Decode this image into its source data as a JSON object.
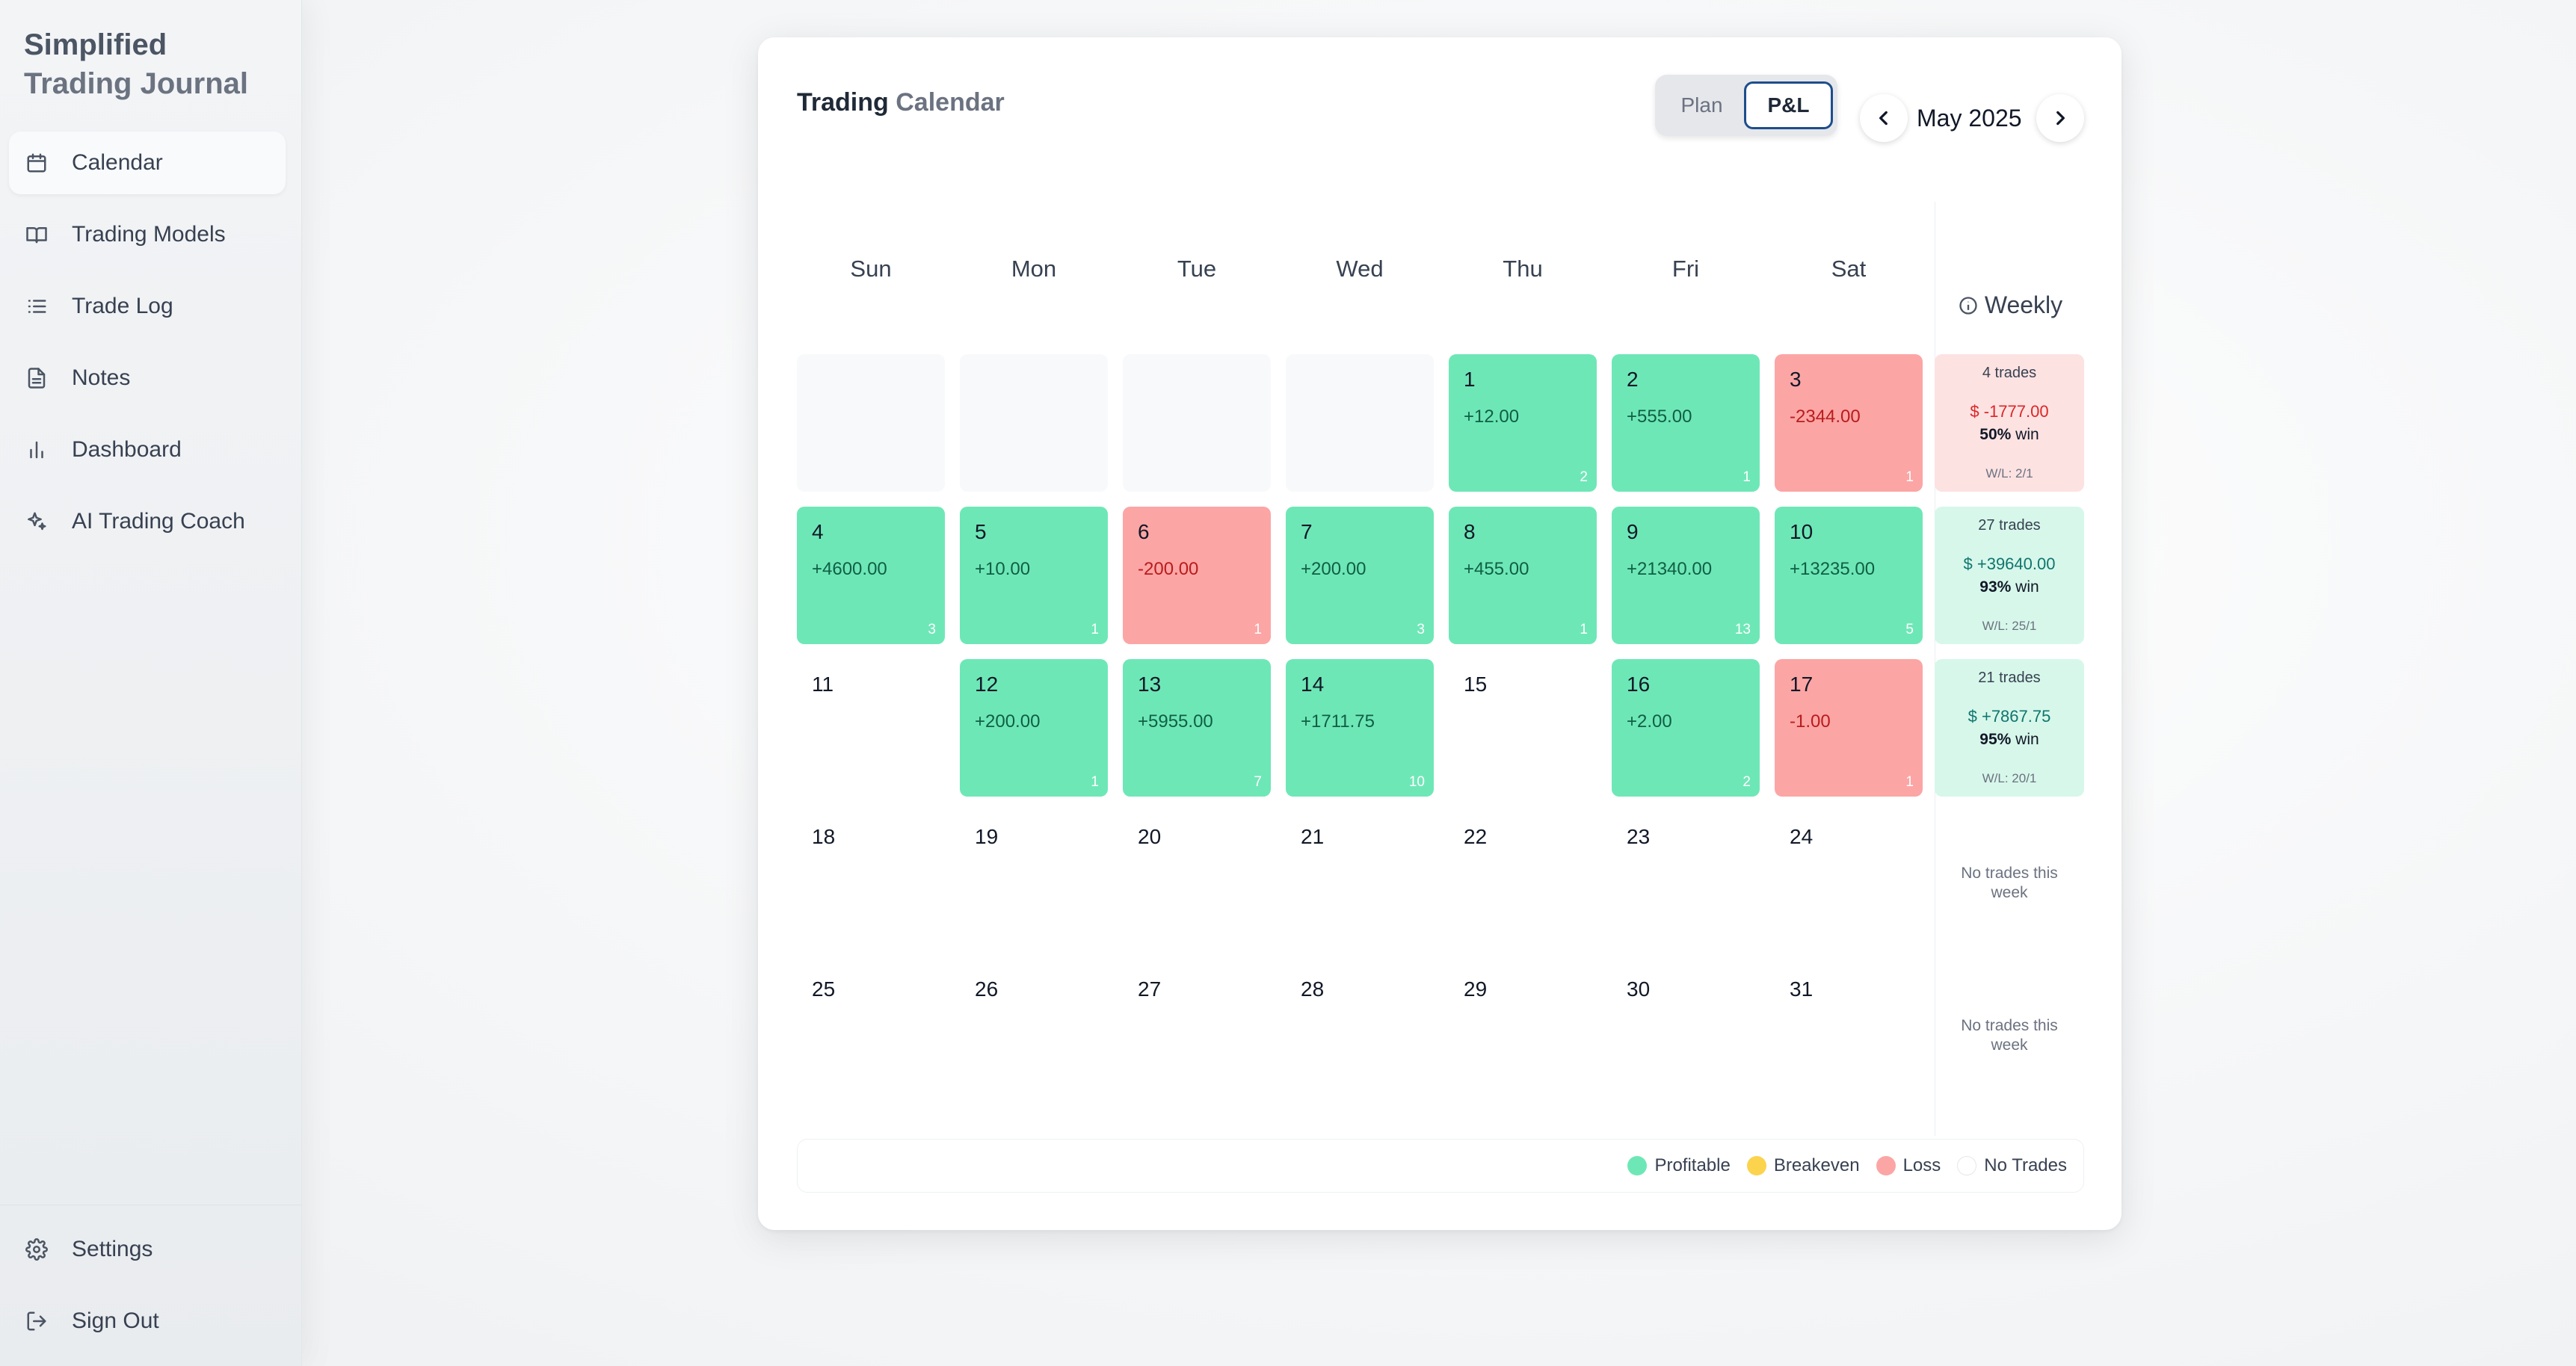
{
  "brand": {
    "line1": "Simplified",
    "line2": "Trading Journal"
  },
  "nav": [
    {
      "label": "Calendar",
      "icon": "calendar-icon",
      "active": true
    },
    {
      "label": "Trading Models",
      "icon": "book-icon"
    },
    {
      "label": "Trade Log",
      "icon": "list-icon"
    },
    {
      "label": "Notes",
      "icon": "file-text-icon"
    },
    {
      "label": "Dashboard",
      "icon": "bar-chart-icon"
    },
    {
      "label": "AI Trading Coach",
      "icon": "sparkles-icon"
    }
  ],
  "nav_bottom": [
    {
      "label": "Settings",
      "icon": "gear-icon"
    },
    {
      "label": "Sign Out",
      "icon": "logout-icon"
    }
  ],
  "calendar": {
    "title_part1": "Trading",
    "title_part2": "Calendar",
    "toggle": {
      "plan": "Plan",
      "pnl": "P&L",
      "selected": "P&L"
    },
    "month": "May 2025",
    "days_of_week": [
      "Sun",
      "Mon",
      "Tue",
      "Wed",
      "Thu",
      "Fri",
      "Sat"
    ],
    "weekly_label": "Weekly",
    "weeks": [
      {
        "days": [
          {
            "type": "blank"
          },
          {
            "type": "blank"
          },
          {
            "type": "blank"
          },
          {
            "type": "blank"
          },
          {
            "type": "profit",
            "day": "1",
            "pnl": "+12.00",
            "trades": "2"
          },
          {
            "type": "profit",
            "day": "2",
            "pnl": "+555.00",
            "trades": "1"
          },
          {
            "type": "loss",
            "day": "3",
            "pnl": "-2344.00",
            "trades": "1"
          }
        ],
        "summary": {
          "status": "neg",
          "trades": "4 trades",
          "amount": "$ -1777.00",
          "win_pct": "50%",
          "win_word": "win",
          "wl": "W/L: 2/1"
        }
      },
      {
        "days": [
          {
            "type": "profit",
            "day": "4",
            "pnl": "+4600.00",
            "trades": "3"
          },
          {
            "type": "profit",
            "day": "5",
            "pnl": "+10.00",
            "trades": "1"
          },
          {
            "type": "loss",
            "day": "6",
            "pnl": "-200.00",
            "trades": "1"
          },
          {
            "type": "profit",
            "day": "7",
            "pnl": "+200.00",
            "trades": "3"
          },
          {
            "type": "profit",
            "day": "8",
            "pnl": "+455.00",
            "trades": "1"
          },
          {
            "type": "profit",
            "day": "9",
            "pnl": "+21340.00",
            "trades": "13"
          },
          {
            "type": "profit",
            "day": "10",
            "pnl": "+13235.00",
            "trades": "5"
          }
        ],
        "summary": {
          "status": "pos",
          "trades": "27 trades",
          "amount": "$ +39640.00",
          "win_pct": "93%",
          "win_word": "win",
          "wl": "W/L: 25/1"
        }
      },
      {
        "days": [
          {
            "type": "empty",
            "day": "11"
          },
          {
            "type": "profit",
            "day": "12",
            "pnl": "+200.00",
            "trades": "1"
          },
          {
            "type": "profit",
            "day": "13",
            "pnl": "+5955.00",
            "trades": "7"
          },
          {
            "type": "profit",
            "day": "14",
            "pnl": "+1711.75",
            "trades": "10"
          },
          {
            "type": "empty",
            "day": "15"
          },
          {
            "type": "profit",
            "day": "16",
            "pnl": "+2.00",
            "trades": "2"
          },
          {
            "type": "loss",
            "day": "17",
            "pnl": "-1.00",
            "trades": "1"
          }
        ],
        "summary": {
          "status": "pos",
          "trades": "21 trades",
          "amount": "$ +7867.75",
          "win_pct": "95%",
          "win_word": "win",
          "wl": "W/L: 20/1"
        }
      },
      {
        "days": [
          {
            "type": "empty",
            "day": "18"
          },
          {
            "type": "empty",
            "day": "19"
          },
          {
            "type": "empty",
            "day": "20"
          },
          {
            "type": "empty",
            "day": "21"
          },
          {
            "type": "empty",
            "day": "22"
          },
          {
            "type": "empty",
            "day": "23"
          },
          {
            "type": "empty",
            "day": "24"
          }
        ],
        "summary": {
          "status": "none",
          "message": "No trades this week"
        }
      },
      {
        "days": [
          {
            "type": "empty",
            "day": "25"
          },
          {
            "type": "empty",
            "day": "26"
          },
          {
            "type": "empty",
            "day": "27"
          },
          {
            "type": "empty",
            "day": "28"
          },
          {
            "type": "empty",
            "day": "29"
          },
          {
            "type": "empty",
            "day": "30"
          },
          {
            "type": "empty",
            "day": "31"
          }
        ],
        "summary": {
          "status": "none",
          "message": "No trades this week"
        }
      }
    ],
    "legend": [
      {
        "label": "Profitable",
        "color": "#6ee7b7"
      },
      {
        "label": "Breakeven",
        "color": "#fcd34d"
      },
      {
        "label": "Loss",
        "color": "#fca5a5"
      },
      {
        "label": "No Trades",
        "color": "#ffffff"
      }
    ]
  }
}
